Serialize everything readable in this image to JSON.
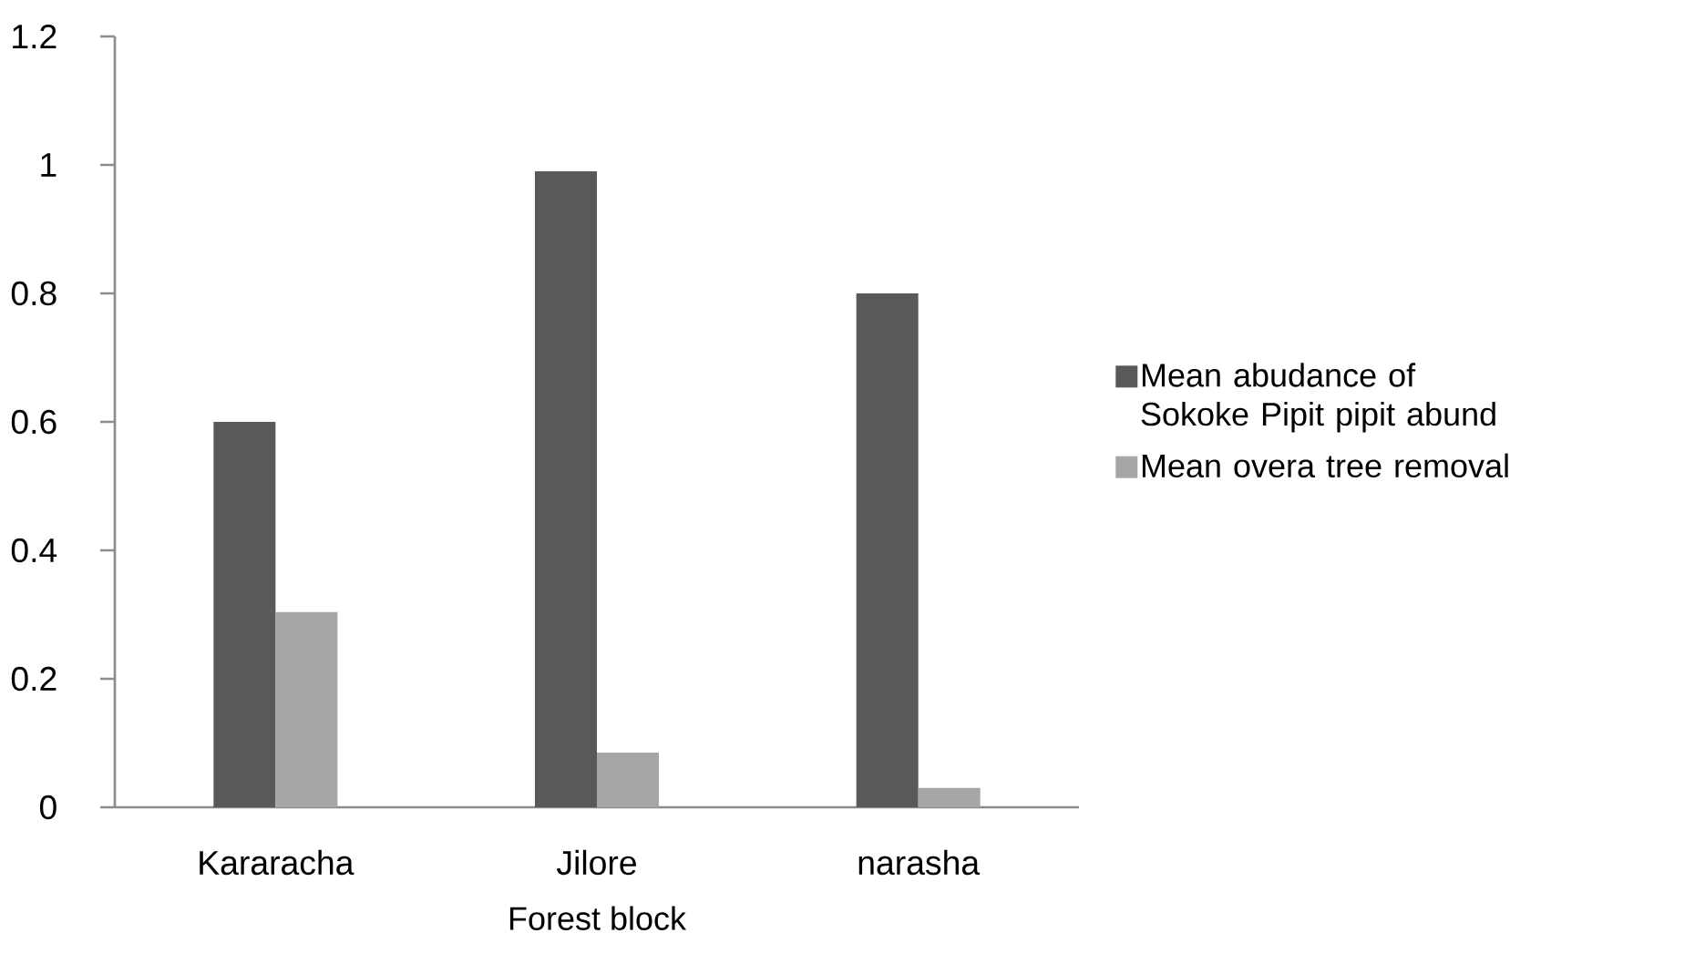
{
  "chart_data": {
    "type": "bar",
    "xlabel": "Forest block",
    "categories": [
      "Kararacha",
      "Jilore",
      "narasha"
    ],
    "series": [
      {
        "name": "Mean abudance of Sokoke Pipit pipit abund",
        "color": "#595959",
        "values": [
          0.6,
          0.99,
          0.8
        ]
      },
      {
        "name": "Mean overa tree removal",
        "color": "#a6a6a6",
        "values": [
          0.304,
          0.085,
          0.03
        ]
      }
    ],
    "ylim": [
      0,
      1.2
    ],
    "yticks": [
      0,
      0.2,
      0.4,
      0.6,
      0.8,
      1,
      1.2
    ],
    "legend": "right",
    "grid": false
  }
}
